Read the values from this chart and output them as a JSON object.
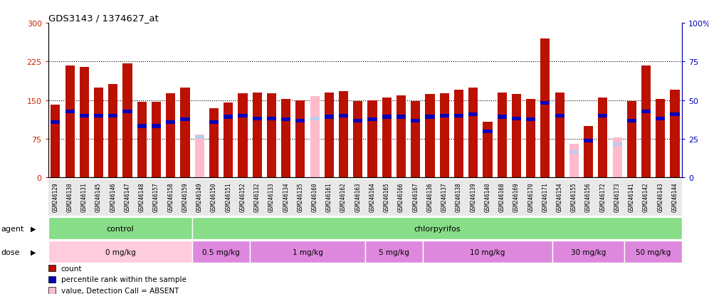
{
  "title": "GDS3143 / 1374627_at",
  "samples": [
    "GSM246129",
    "GSM246130",
    "GSM246131",
    "GSM246145",
    "GSM246146",
    "GSM246147",
    "GSM246148",
    "GSM246157",
    "GSM246158",
    "GSM246159",
    "GSM246149",
    "GSM246150",
    "GSM246151",
    "GSM246152",
    "GSM246132",
    "GSM246133",
    "GSM246134",
    "GSM246135",
    "GSM246160",
    "GSM246161",
    "GSM246162",
    "GSM246163",
    "GSM246164",
    "GSM246165",
    "GSM246166",
    "GSM246167",
    "GSM246136",
    "GSM246137",
    "GSM246138",
    "GSM246139",
    "GSM246140",
    "GSM246168",
    "GSM246169",
    "GSM246170",
    "GSM246171",
    "GSM246154",
    "GSM246155",
    "GSM246156",
    "GSM246172",
    "GSM246173",
    "GSM246141",
    "GSM246142",
    "GSM246143",
    "GSM246144"
  ],
  "count_values": [
    142,
    218,
    215,
    175,
    182,
    222,
    147,
    147,
    163,
    175,
    83,
    135,
    145,
    163,
    165,
    163,
    153,
    150,
    158,
    165,
    168,
    148,
    150,
    155,
    160,
    148,
    162,
    163,
    170,
    175,
    108,
    165,
    162,
    153,
    270,
    165,
    65,
    100,
    155,
    78,
    148,
    218,
    153,
    170
  ],
  "rank_values": [
    107,
    128,
    120,
    120,
    120,
    128,
    100,
    100,
    107,
    113,
    78,
    108,
    118,
    120,
    115,
    115,
    113,
    110,
    115,
    118,
    120,
    110,
    113,
    118,
    118,
    110,
    118,
    120,
    120,
    123,
    90,
    118,
    115,
    113,
    145,
    120,
    50,
    72,
    120,
    65,
    110,
    128,
    115,
    123
  ],
  "absent_mask": [
    false,
    false,
    false,
    false,
    false,
    false,
    false,
    false,
    false,
    false,
    true,
    false,
    false,
    false,
    false,
    false,
    false,
    false,
    true,
    false,
    false,
    false,
    false,
    false,
    false,
    false,
    false,
    false,
    false,
    false,
    false,
    false,
    false,
    false,
    false,
    false,
    true,
    false,
    false,
    true,
    false,
    false,
    false,
    false
  ],
  "agent_groups": [
    {
      "label": "control",
      "start": 0,
      "end": 9,
      "color": "#88DD88"
    },
    {
      "label": "chlorpyrifos",
      "start": 10,
      "end": 43,
      "color": "#88DD88"
    }
  ],
  "dose_groups": [
    {
      "label": "0 mg/kg",
      "start": 0,
      "end": 9,
      "color": "#FFCCDD"
    },
    {
      "label": "0.5 mg/kg",
      "start": 10,
      "end": 13,
      "color": "#DD88DD"
    },
    {
      "label": "1 mg/kg",
      "start": 14,
      "end": 21,
      "color": "#DD88DD"
    },
    {
      "label": "5 mg/kg",
      "start": 22,
      "end": 25,
      "color": "#DD88DD"
    },
    {
      "label": "10 mg/kg",
      "start": 26,
      "end": 34,
      "color": "#DD88DD"
    },
    {
      "label": "30 mg/kg",
      "start": 35,
      "end": 39,
      "color": "#DD88DD"
    },
    {
      "label": "50 mg/kg",
      "start": 40,
      "end": 43,
      "color": "#DD88DD"
    }
  ],
  "ylim_left": [
    0,
    300
  ],
  "ylim_right": [
    0,
    100
  ],
  "yticks_left": [
    0,
    75,
    150,
    225,
    300
  ],
  "yticks_right": [
    0,
    25,
    50,
    75,
    100
  ],
  "hlines": [
    75,
    150,
    225
  ],
  "bar_color": "#BB1100",
  "rank_color": "#0000BB",
  "absent_bar_color": "#FFBBCC",
  "absent_rank_color": "#BBCCEE",
  "bg_color": "#FFFFFF",
  "left_axis_color": "#CC2200",
  "right_axis_color": "#0000BB",
  "xtick_bg_color": "#E8E8E8"
}
